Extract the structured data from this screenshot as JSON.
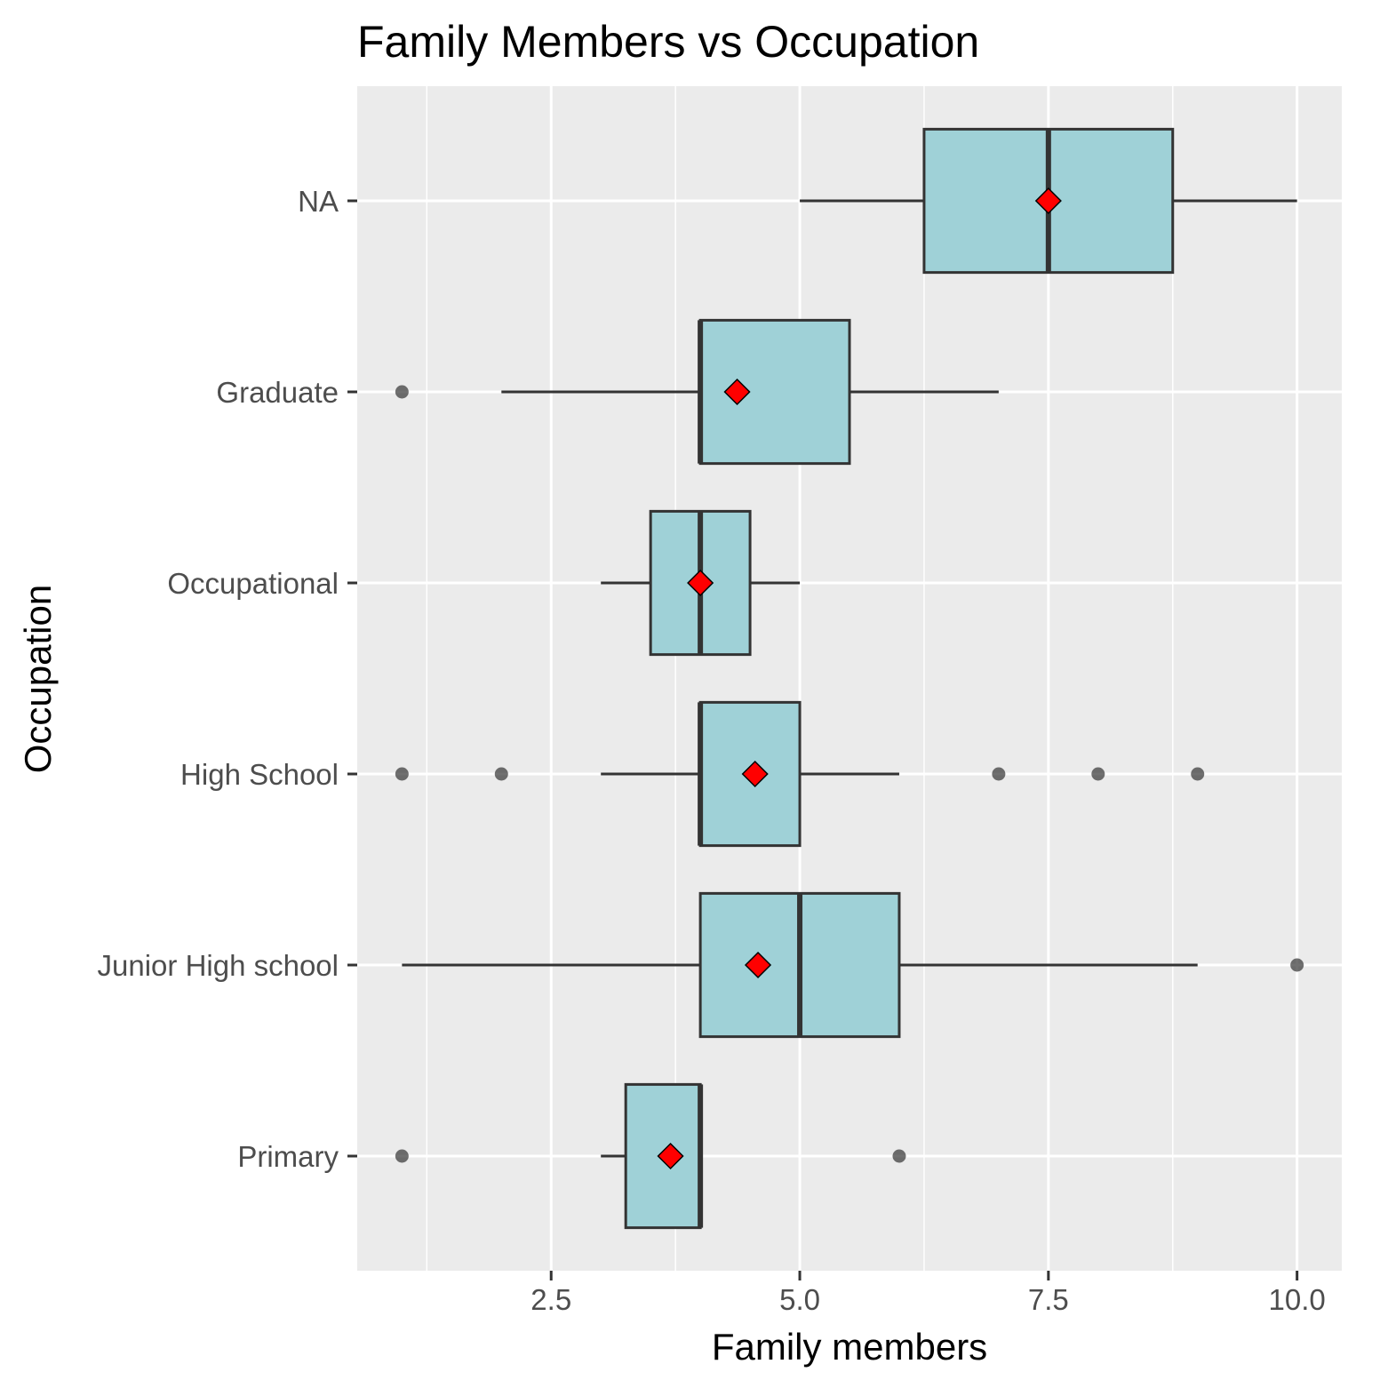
{
  "chart_data": {
    "type": "boxplot",
    "orientation": "horizontal",
    "title": "Family Members vs Occupation",
    "xlabel": "Family members",
    "ylabel": "Occupation",
    "xlim": [
      0.55,
      10.45
    ],
    "x_ticks": [
      2.5,
      5.0,
      7.5,
      10.0
    ],
    "x_tick_labels": [
      "2.5",
      "5.0",
      "7.5",
      "10.0"
    ],
    "grid": true,
    "colors": {
      "panel_background": "#ebebeb",
      "grid": "#ffffff",
      "box_fill": "#9fd1d7",
      "box_stroke": "#333333",
      "mean_marker": "#ff0000",
      "outlier": "#333333"
    },
    "categories": [
      "Primary",
      "Junior High school",
      "High School",
      "Occupational",
      "Graduate",
      "NA"
    ],
    "boxes": [
      {
        "category": "Primary",
        "whisker_low": 3.0,
        "q1": 3.25,
        "median": 4.0,
        "q3": 4.0,
        "whisker_high": 4.0,
        "mean": 3.7,
        "outliers": [
          1,
          6
        ]
      },
      {
        "category": "Junior High school",
        "whisker_low": 1.0,
        "q1": 4.0,
        "median": 5.0,
        "q3": 6.0,
        "whisker_high": 9.0,
        "mean": 4.58,
        "outliers": [
          10
        ]
      },
      {
        "category": "High School",
        "whisker_low": 3.0,
        "q1": 4.0,
        "median": 4.0,
        "q3": 5.0,
        "whisker_high": 6.0,
        "mean": 4.55,
        "outliers": [
          1,
          2,
          7,
          8,
          9
        ]
      },
      {
        "category": "Occupational",
        "whisker_low": 3.0,
        "q1": 3.5,
        "median": 4.0,
        "q3": 4.5,
        "whisker_high": 5.0,
        "mean": 4.0,
        "outliers": []
      },
      {
        "category": "Graduate",
        "whisker_low": 2.0,
        "q1": 4.0,
        "median": 4.0,
        "q3": 5.5,
        "whisker_high": 7.0,
        "mean": 4.37,
        "outliers": [
          1
        ]
      },
      {
        "category": "NA",
        "whisker_low": 5.0,
        "q1": 6.25,
        "median": 7.5,
        "q3": 8.75,
        "whisker_high": 10.0,
        "mean": 7.5,
        "outliers": []
      }
    ]
  }
}
